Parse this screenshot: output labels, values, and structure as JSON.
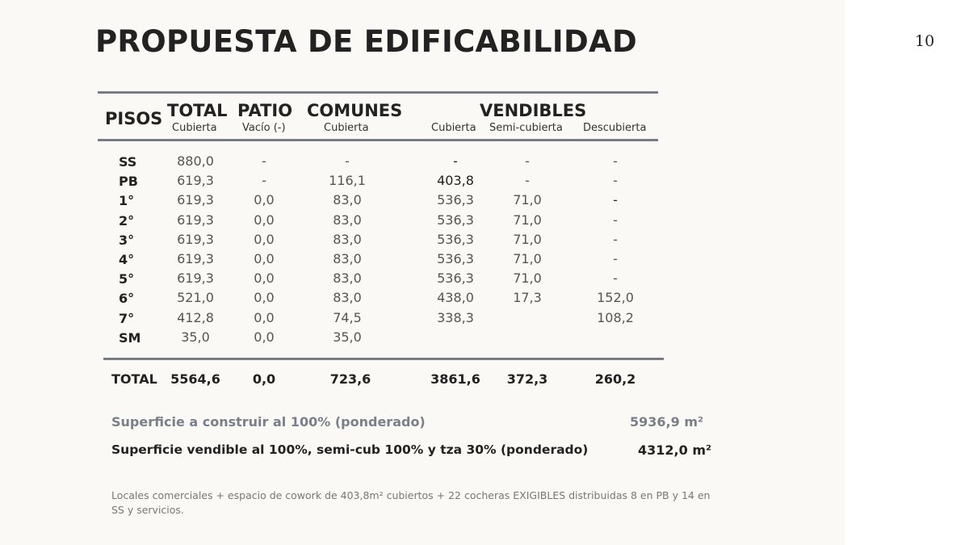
{
  "page_number": "10",
  "title": "PROPUESTA DE EDIFICABILIDAD",
  "table": {
    "headers": {
      "pisos": "PISOS",
      "total": "TOTAL",
      "total_sub": "Cubierta",
      "patio": "PATIO",
      "patio_sub": "Vacío (-)",
      "comunes": "COMUNES",
      "comunes_sub": "Cubierta",
      "vendibles": "VENDIBLES",
      "vend_cub_sub": "Cubierta",
      "vend_semi_sub": "Semi-cubierta",
      "vend_desc_sub": "Descubierta"
    },
    "rows": [
      {
        "piso": "SS",
        "total": "880,0",
        "patio": "-",
        "comunes": "-",
        "cubierta": "-",
        "semi": "-",
        "desc": "-"
      },
      {
        "piso": "PB",
        "total": "619,3",
        "patio": "-",
        "comunes": "116,1",
        "cubierta": "403,8",
        "semi": "-",
        "desc": "-"
      },
      {
        "piso": "1°",
        "total": "619,3",
        "patio": "0,0",
        "comunes": "83,0",
        "cubierta": "536,3",
        "semi": "71,0",
        "desc": "-"
      },
      {
        "piso": "2°",
        "total": "619,3",
        "patio": "0,0",
        "comunes": "83,0",
        "cubierta": "536,3",
        "semi": "71,0",
        "desc": "-"
      },
      {
        "piso": "3°",
        "total": "619,3",
        "patio": "0,0",
        "comunes": "83,0",
        "cubierta": "536,3",
        "semi": "71,0",
        "desc": "-"
      },
      {
        "piso": "4°",
        "total": "619,3",
        "patio": "0,0",
        "comunes": "83,0",
        "cubierta": "536,3",
        "semi": "71,0",
        "desc": "-"
      },
      {
        "piso": "5°",
        "total": "619,3",
        "patio": "0,0",
        "comunes": "83,0",
        "cubierta": "536,3",
        "semi": "71,0",
        "desc": "-"
      },
      {
        "piso": "6°",
        "total": "521,0",
        "patio": "0,0",
        "comunes": "83,0",
        "cubierta": "438,0",
        "semi": "17,3",
        "desc": "152,0"
      },
      {
        "piso": "7°",
        "total": "412,8",
        "patio": "0,0",
        "comunes": "74,5",
        "cubierta": "338,3",
        "semi": "",
        "desc": "108,2"
      },
      {
        "piso": "SM",
        "total": "35,0",
        "patio": "0,0",
        "comunes": "35,0",
        "cubierta": "",
        "semi": "",
        "desc": ""
      }
    ],
    "totals": {
      "label": "TOTAL",
      "total": "5564,6",
      "patio": "0,0",
      "comunes": "723,6",
      "cubierta": "3861,6",
      "semi": "372,3",
      "desc": "260,2"
    }
  },
  "summary": {
    "construir_label": "Superficie a construir  al 100% (ponderado)",
    "construir_value": "5936,9 m²",
    "vendible_label": "Superficie vendible  al 100%, semi-cub 100% y tza 30% (ponderado)",
    "vendible_value": "4312,0 m²"
  },
  "note": "Locales comerciales + espacio de cowork de 403,8m² cubiertos + 22 cocheras EXIGIBLES distribuidas 8 en PB y 14 en SS y servicios.",
  "colors": {
    "slide_bg": "#faf9f6",
    "rule": "#777d88",
    "muted_text": "#7a808a"
  }
}
